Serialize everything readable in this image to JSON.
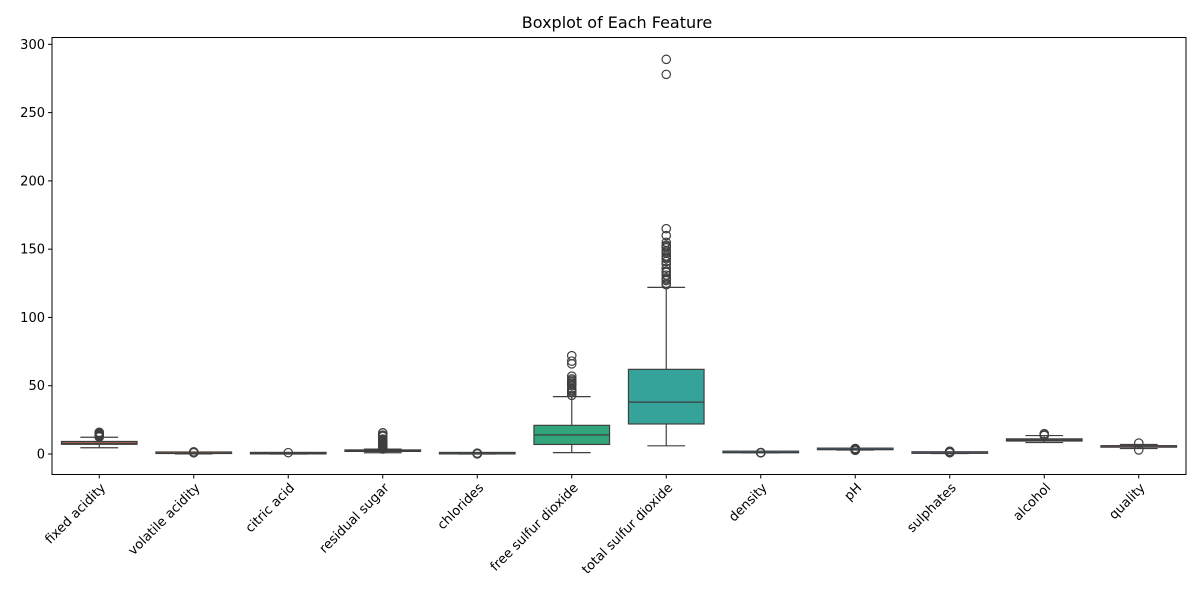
{
  "chart_data": {
    "type": "box",
    "title": "Boxplot of Each Feature",
    "xlabel": "",
    "ylabel": "",
    "ylim": [
      -15,
      305
    ],
    "yticks": [
      0,
      50,
      100,
      150,
      200,
      250,
      300
    ],
    "grid": false,
    "legend": "none",
    "series": [
      {
        "name": "fixed acidity",
        "color": "#e0705f",
        "stats": {
          "whislo": 4.6,
          "q1": 7.1,
          "med": 7.9,
          "q3": 9.2,
          "whishi": 12.3
        },
        "fliers": [
          12.5,
          12.8,
          13.0,
          13.3,
          13.7,
          14.0,
          14.3,
          15.0,
          15.6,
          15.9
        ]
      },
      {
        "name": "volatile acidity",
        "color": "#d98a3a",
        "stats": {
          "whislo": 0.12,
          "q1": 0.39,
          "med": 0.52,
          "q3": 0.64,
          "whishi": 1.01
        },
        "fliers": [
          1.02,
          1.04,
          1.07,
          1.09,
          1.13,
          1.18,
          1.24,
          1.33,
          1.58
        ]
      },
      {
        "name": "citric acid",
        "color": "#b59b3a",
        "stats": {
          "whislo": 0.0,
          "q1": 0.09,
          "med": 0.26,
          "q3": 0.42,
          "whishi": 0.79
        },
        "fliers": [
          1.0
        ]
      },
      {
        "name": "residual sugar",
        "color": "#94a53a",
        "stats": {
          "whislo": 0.9,
          "q1": 1.9,
          "med": 2.2,
          "q3": 2.6,
          "whishi": 3.6
        },
        "fliers": [
          3.7,
          3.9,
          4.1,
          4.3,
          4.6,
          5.0,
          5.5,
          5.9,
          6.3,
          6.7,
          7.0,
          7.5,
          7.9,
          8.3,
          8.8,
          9.0,
          10.0,
          10.7,
          11.0,
          12.9,
          13.4,
          13.8,
          15.4,
          15.5
        ]
      },
      {
        "name": "chlorides",
        "color": "#4aa84a",
        "stats": {
          "whislo": 0.012,
          "q1": 0.07,
          "med": 0.079,
          "q3": 0.09,
          "whishi": 0.119
        },
        "fliers": [
          0.12,
          0.2,
          0.3,
          0.4,
          0.5,
          0.61
        ]
      },
      {
        "name": "free sulfur dioxide",
        "color": "#32a67a",
        "stats": {
          "whislo": 1,
          "q1": 7,
          "med": 14,
          "q3": 21,
          "whishi": 42
        },
        "fliers": [
          43,
          45,
          46,
          47,
          48,
          50,
          51,
          52,
          53,
          54,
          55,
          57,
          66,
          68,
          72
        ]
      },
      {
        "name": "total sulfur dioxide",
        "color": "#36a39a",
        "stats": {
          "whislo": 6,
          "q1": 22,
          "med": 38,
          "q3": 62,
          "whishi": 122
        },
        "fliers": [
          124,
          125,
          127,
          128,
          129,
          131,
          133,
          134,
          136,
          139,
          141,
          143,
          144,
          145,
          147,
          148,
          149,
          151,
          152,
          153,
          155,
          160,
          165,
          278,
          289
        ]
      },
      {
        "name": "density",
        "color": "#38a1b8",
        "stats": {
          "whislo": 0.9922,
          "q1": 0.9956,
          "med": 0.9968,
          "q3": 0.9978,
          "whishi": 1.001
        },
        "fliers": [
          0.9901,
          0.9912,
          1.0014,
          1.0026,
          1.0037
        ]
      },
      {
        "name": "pH",
        "color": "#4a9ad6",
        "stats": {
          "whislo": 2.93,
          "q1": 3.21,
          "med": 3.31,
          "q3": 3.4,
          "whishi": 3.68
        },
        "fliers": [
          2.74,
          2.86,
          2.88,
          2.89,
          2.9,
          3.69,
          3.71,
          3.72,
          3.75,
          3.78,
          3.85,
          3.9,
          4.01
        ]
      },
      {
        "name": "sulphates",
        "color": "#9b8fe0",
        "stats": {
          "whislo": 0.33,
          "q1": 0.55,
          "med": 0.62,
          "q3": 0.73,
          "whishi": 0.99
        },
        "fliers": [
          1.0,
          1.05,
          1.1,
          1.2,
          1.3,
          1.36,
          1.59,
          1.62,
          1.95,
          2.0
        ]
      },
      {
        "name": "alcohol",
        "color": "#c48ad6",
        "stats": {
          "whislo": 8.4,
          "q1": 9.5,
          "med": 10.2,
          "q3": 11.1,
          "whishi": 13.5
        },
        "fliers": [
          13.6,
          14.0,
          14.9
        ]
      },
      {
        "name": "quality",
        "color": "#d97fb0",
        "stats": {
          "whislo": 4,
          "q1": 5,
          "med": 6,
          "q3": 6,
          "whishi": 7
        },
        "fliers": [
          3,
          8
        ]
      }
    ]
  }
}
